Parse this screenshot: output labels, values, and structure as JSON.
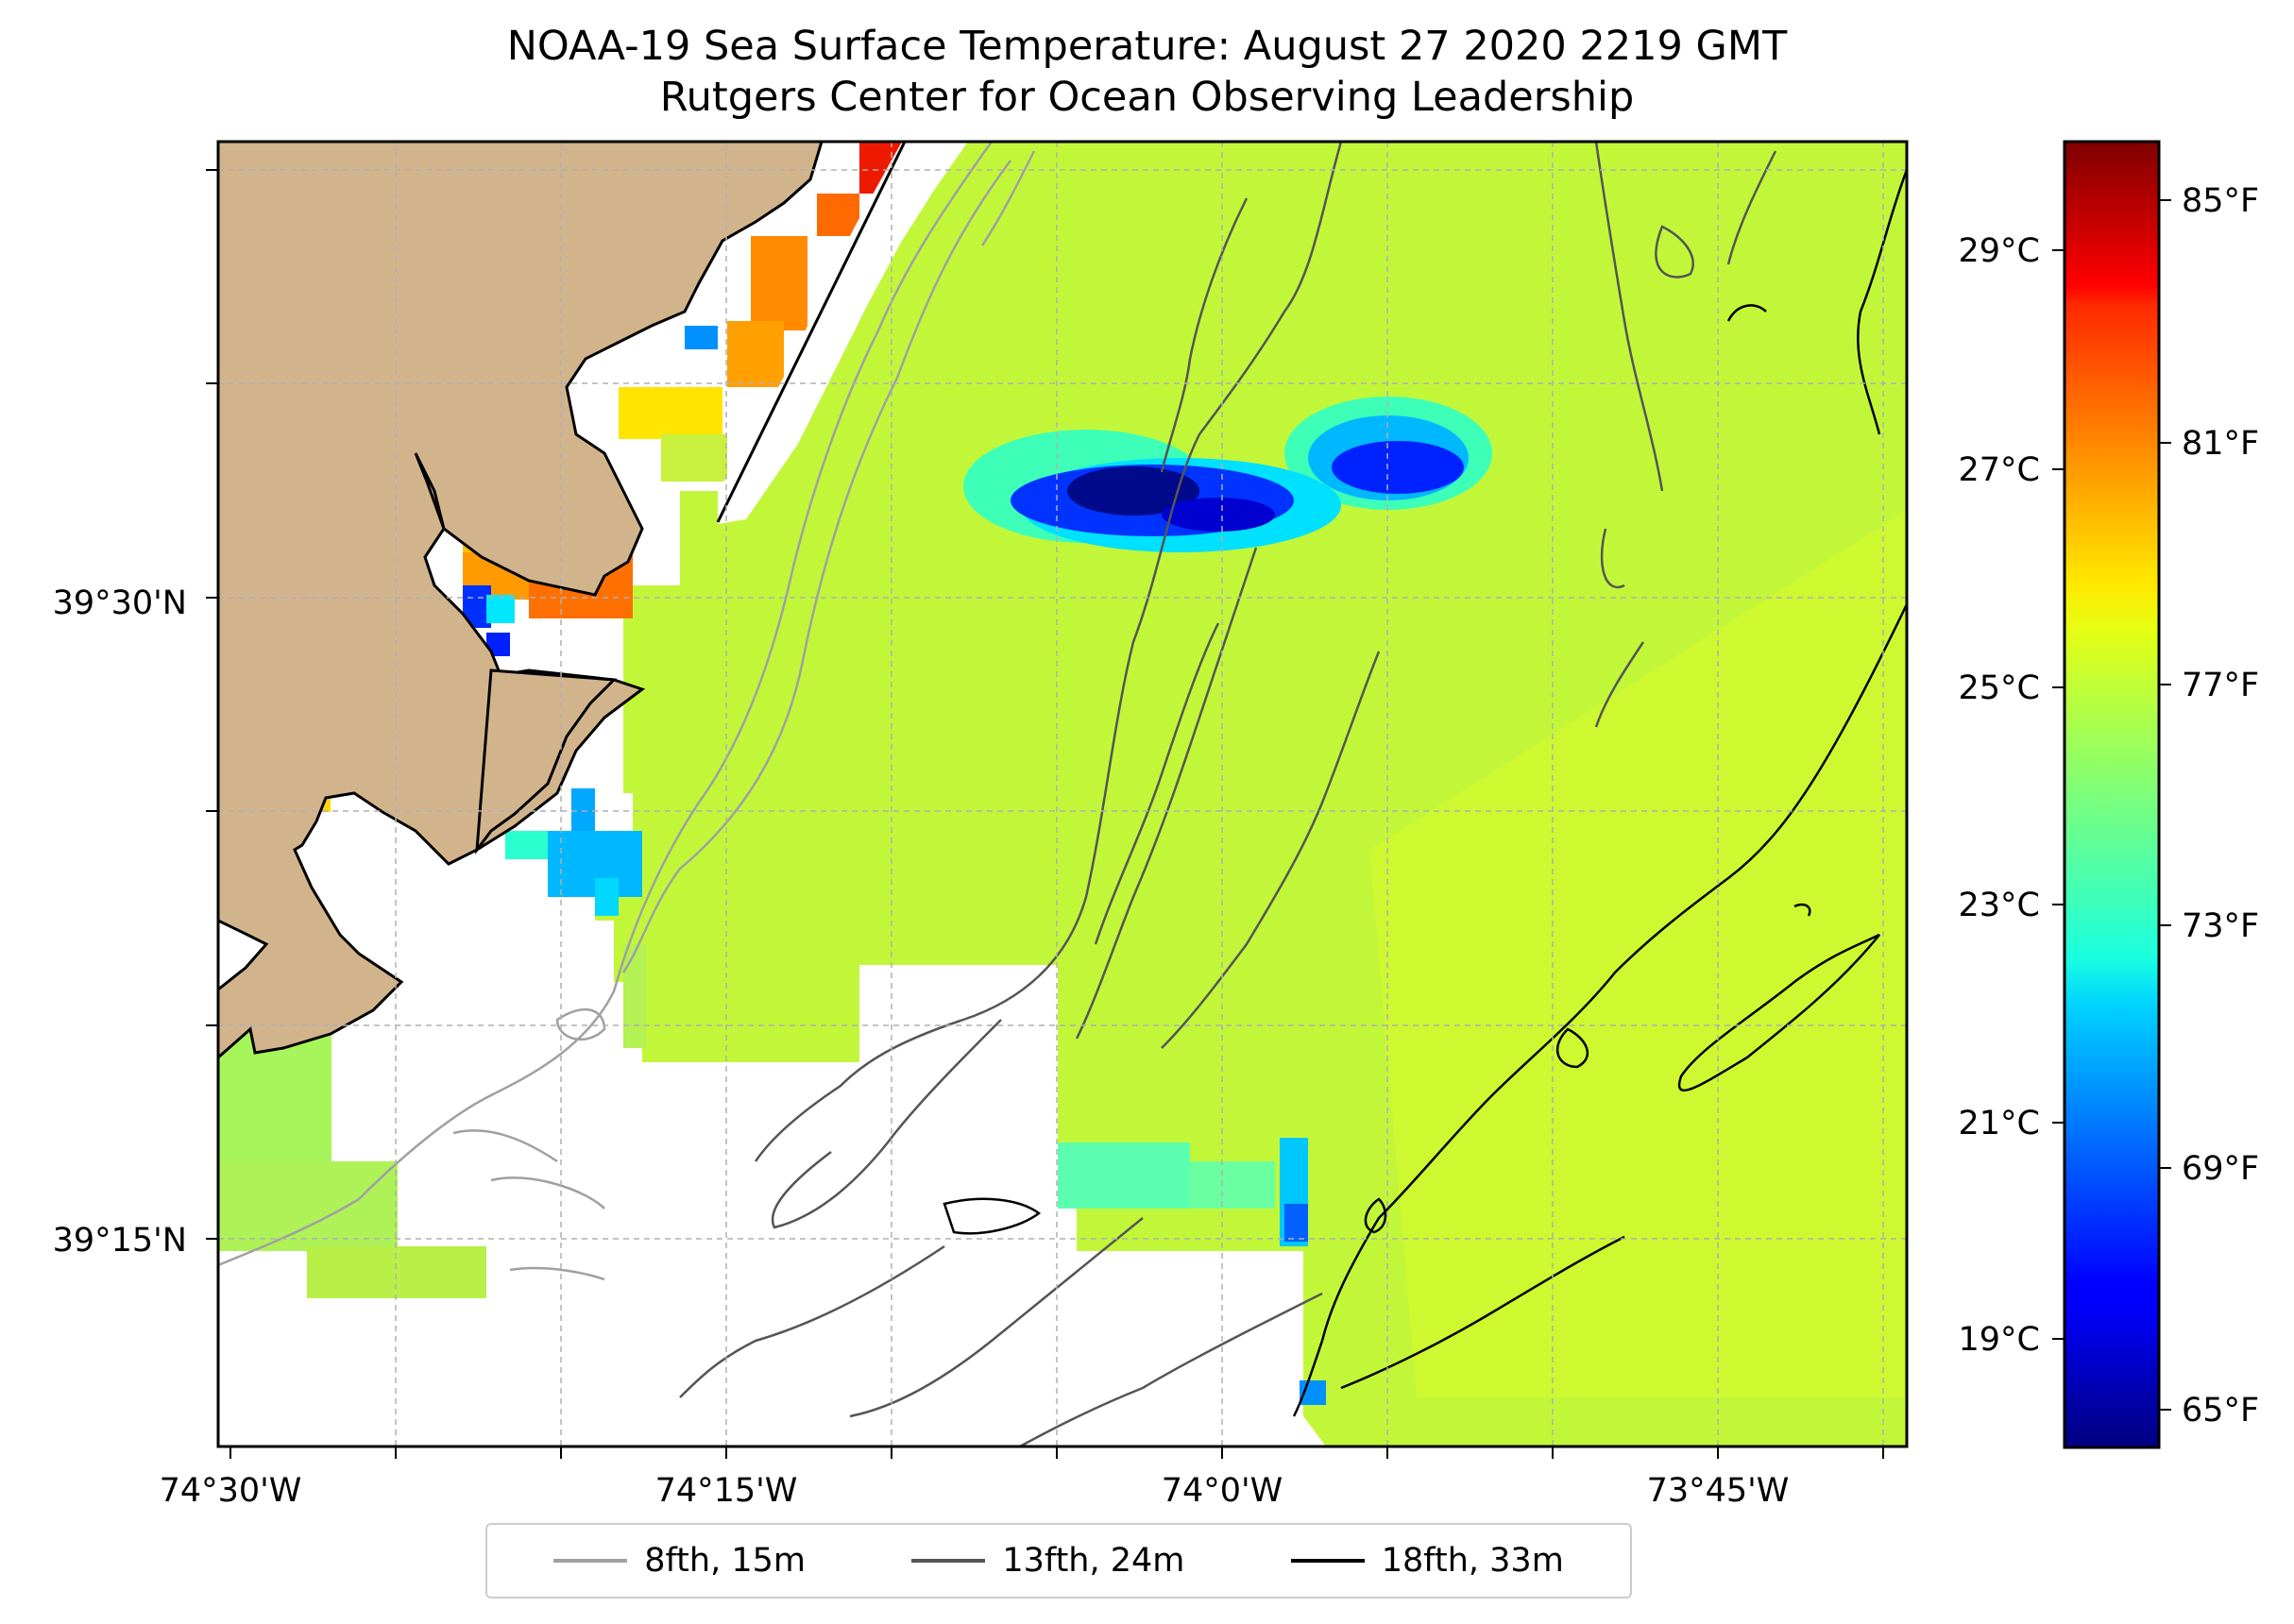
{
  "title": {
    "line1": "NOAA-19 Sea Surface Temperature: August 27 2020 2219 GMT",
    "line2": "Rutgers Center for Ocean Observing Leadership"
  },
  "map": {
    "lon_ticks": [
      "74°30'W",
      "74°15'W",
      "74°0'W",
      "73°45'W"
    ],
    "lat_ticks": [
      "39°30'N",
      "39°15'N"
    ],
    "land_color": "#d2b48c",
    "isobath_colors": {
      "15m": "#a0a0a0",
      "24m": "#555555",
      "33m": "#000000"
    }
  },
  "colorbar": {
    "celsius_ticks": [
      "29°C",
      "27°C",
      "25°C",
      "23°C",
      "21°C",
      "19°C"
    ],
    "fahrenheit_ticks": [
      "85°F",
      "81°F",
      "77°F",
      "73°F",
      "69°F",
      "65°F"
    ],
    "colormap": "jet",
    "range_f": [
      64,
      86
    ]
  },
  "legend": {
    "items": [
      {
        "label": "8fth, 15m",
        "color": "#a0a0a0"
      },
      {
        "label": "13fth, 24m",
        "color": "#555555"
      },
      {
        "label": "18fth, 33m",
        "color": "#000000"
      }
    ]
  }
}
